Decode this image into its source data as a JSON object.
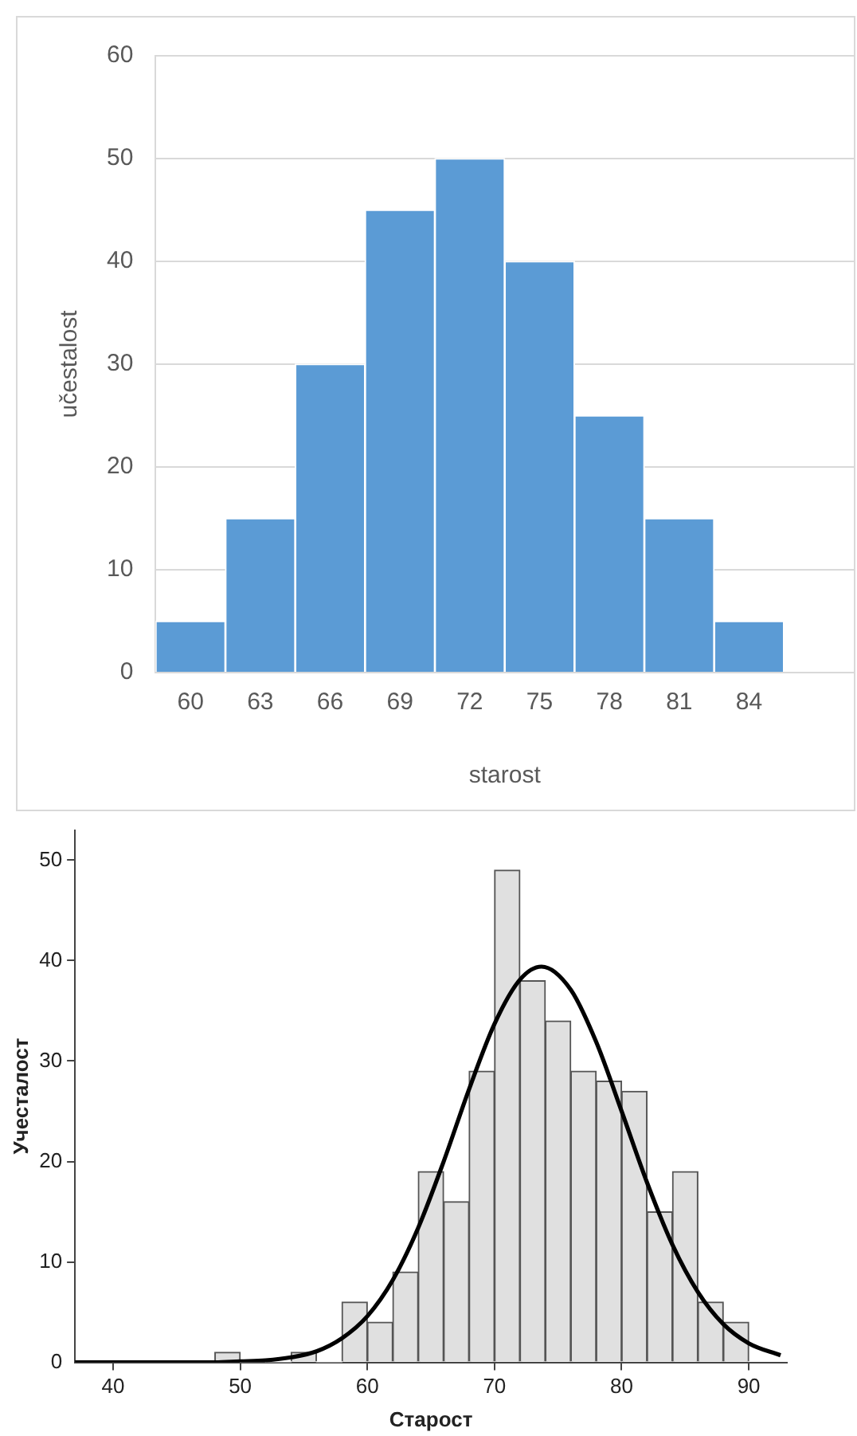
{
  "chart_data": [
    {
      "type": "bar",
      "xlabel": "starost",
      "ylabel": "učestalost",
      "categories": [
        "60",
        "63",
        "66",
        "69",
        "72",
        "75",
        "78",
        "81",
        "84",
        null
      ],
      "values": [
        5,
        15,
        30,
        45,
        50,
        40,
        25,
        15,
        5,
        null
      ],
      "color": "#5b9bd5",
      "ylim": [
        0,
        60
      ],
      "yticks": [
        0,
        10,
        20,
        30,
        40,
        50,
        60
      ],
      "grid": "y",
      "legend": false
    },
    {
      "type": "histogram",
      "xlabel": "Старост",
      "ylabel": "Учесталост",
      "bins": [
        48,
        50,
        52,
        54,
        56,
        58,
        60,
        62,
        64,
        66,
        68,
        70,
        72,
        74,
        76,
        78,
        80,
        82,
        84,
        86,
        88,
        90
      ],
      "values": [
        1,
        0,
        0,
        1,
        0,
        6,
        4,
        9,
        19,
        16,
        29,
        49,
        38,
        34,
        29,
        28,
        27,
        15,
        19,
        6,
        4
      ],
      "color": "#e0e0e0",
      "series": [
        {
          "type": "line",
          "color": "#000000",
          "x": [
            37,
            40,
            44,
            48,
            50,
            52,
            54,
            56,
            58,
            60,
            62,
            64,
            66,
            68,
            70,
            72,
            73.7,
            76,
            78,
            80,
            82,
            84,
            86,
            88,
            90,
            92.5
          ],
          "values": [
            0,
            0,
            0,
            0,
            0.1,
            0.2,
            0.5,
            1.1,
            2.4,
            4.6,
            8.2,
            13.4,
            20,
            27.2,
            33.7,
            38.1,
            39.4,
            37.1,
            31.9,
            25,
            17.9,
            11.7,
            7,
            3.8,
            1.9,
            0.7
          ]
        }
      ],
      "xlim": [
        37,
        93
      ],
      "xticks": [
        40,
        50,
        60,
        70,
        80,
        90
      ],
      "ylim": [
        0,
        53
      ],
      "yticks": [
        0,
        10,
        20,
        30,
        40,
        50
      ],
      "grid": false,
      "legend": false
    }
  ]
}
